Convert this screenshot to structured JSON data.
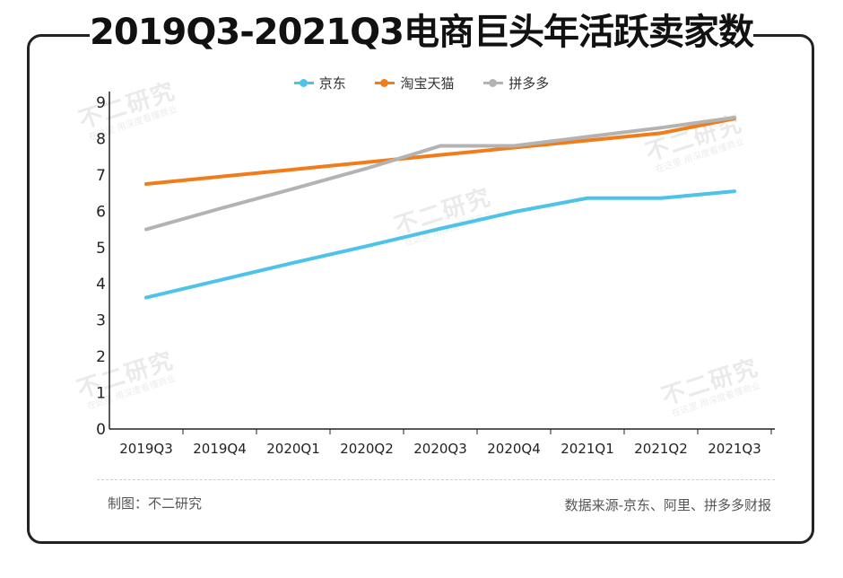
{
  "title": "2019Q3-2021Q3电商巨头年活跃卖家数",
  "footer": {
    "maker": "制图：不二研究",
    "source": "数据来源-京东、阿里、拼多多财报"
  },
  "watermark": {
    "main": "不二研究",
    "sub": "在这里 用深度看懂商业"
  },
  "colors": {
    "jd": "#4dc3ea",
    "taobao": "#f07d1a",
    "pdd": "#b3b3b3"
  },
  "chart_data": {
    "type": "line",
    "title": "2019Q3-2021Q3电商巨头年活跃卖家数",
    "xlabel": "",
    "ylabel": "",
    "categories": [
      "2019Q3",
      "2019Q4",
      "2020Q1",
      "2020Q2",
      "2020Q3",
      "2020Q4",
      "2021Q1",
      "2021Q2",
      "2021Q3"
    ],
    "y_ticks": [
      "0",
      "1",
      "2",
      "3",
      "4",
      "5",
      "6",
      "7",
      "8",
      "9"
    ],
    "ylim": [
      0,
      9
    ],
    "grid": false,
    "legend_position": "top-center",
    "series": [
      {
        "name": "京东",
        "color": "#4dc3ea",
        "values": [
          3.62,
          4.1,
          4.58,
          5.04,
          5.52,
          5.98,
          6.36,
          6.36,
          6.55
        ]
      },
      {
        "name": "淘宝天猫",
        "color": "#f07d1a",
        "values": [
          6.75,
          6.95,
          7.15,
          7.35,
          7.55,
          7.75,
          7.95,
          8.15,
          8.55
        ]
      },
      {
        "name": "拼多多",
        "color": "#b3b3b3",
        "values": [
          5.5,
          6.07,
          6.62,
          7.18,
          7.8,
          7.8,
          8.05,
          8.3,
          8.58
        ]
      }
    ]
  }
}
